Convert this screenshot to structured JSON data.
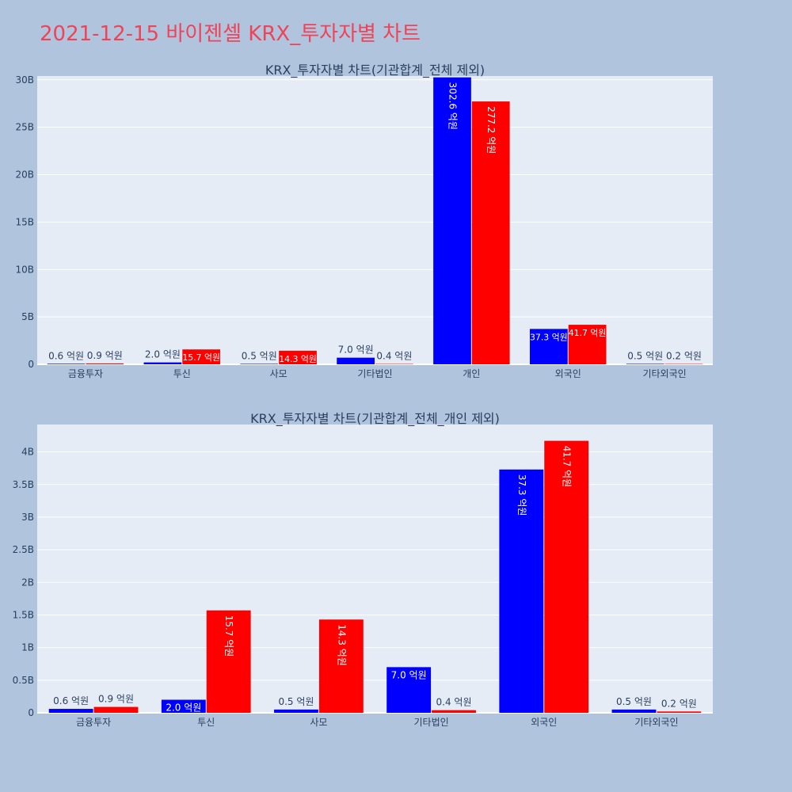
{
  "page_title": "2021-12-15 바이젠셀 KRX_투자자별 차트",
  "colors": {
    "background": "#b0c4de",
    "plot_bg": "#e5ecf6",
    "title": "#ef4458",
    "series_a": "#0000ff",
    "series_b": "#ff0000"
  },
  "chart_data": [
    {
      "type": "bar",
      "title": "KRX_투자자별 차트(기관합계_전체 제외)",
      "categories": [
        "금융투자",
        "투신",
        "사모",
        "기타법인",
        "개인",
        "외국인",
        "기타외국인"
      ],
      "yticks": [
        {
          "value": 0,
          "label": "0"
        },
        {
          "value": 5,
          "label": "5B"
        },
        {
          "value": 10,
          "label": "10B"
        },
        {
          "value": 15,
          "label": "15B"
        },
        {
          "value": 20,
          "label": "20B"
        },
        {
          "value": 25,
          "label": "25B"
        },
        {
          "value": 30,
          "label": "30B"
        }
      ],
      "ylim": [
        0,
        30.4
      ],
      "grid": true,
      "legend": "none",
      "series": [
        {
          "color": "#0000ff",
          "values": [
            0.06,
            0.2,
            0.05,
            0.7,
            30.26,
            3.73,
            0.05
          ],
          "labels": [
            "0.6 억원",
            "2.0 억원",
            "0.5 억원",
            "7.0 억원",
            "302.6 억원",
            "37.3 억원",
            "0.5 억원"
          ]
        },
        {
          "color": "#ff0000",
          "values": [
            0.09,
            1.57,
            1.43,
            0.04,
            27.72,
            4.17,
            0.02
          ],
          "labels": [
            "0.9 억원",
            "15.7 억원",
            "14.3 억원",
            "0.4 억원",
            "277.2 억원",
            "41.7 억원",
            "0.2 억원"
          ]
        }
      ]
    },
    {
      "type": "bar",
      "title": "KRX_투자자별 차트(기관합계_전체_개인 제외)",
      "categories": [
        "금융투자",
        "투신",
        "사모",
        "기타법인",
        "외국인",
        "기타외국인"
      ],
      "yticks": [
        {
          "value": 0,
          "label": "0"
        },
        {
          "value": 0.5,
          "label": "0.5B"
        },
        {
          "value": 1,
          "label": "1B"
        },
        {
          "value": 1.5,
          "label": "1.5B"
        },
        {
          "value": 2,
          "label": "2B"
        },
        {
          "value": 2.5,
          "label": "2.5B"
        },
        {
          "value": 3,
          "label": "3B"
        },
        {
          "value": 3.5,
          "label": "3.5B"
        },
        {
          "value": 4,
          "label": "4B"
        }
      ],
      "ylim": [
        0,
        4.42
      ],
      "grid": true,
      "legend": "none",
      "series": [
        {
          "color": "#0000ff",
          "values": [
            0.06,
            0.2,
            0.05,
            0.7,
            3.73,
            0.05
          ],
          "labels": [
            "0.6 억원",
            "2.0 억원",
            "0.5 억원",
            "7.0 억원",
            "37.3 억원",
            "0.5 억원"
          ]
        },
        {
          "color": "#ff0000",
          "values": [
            0.09,
            1.57,
            1.43,
            0.04,
            4.17,
            0.02
          ],
          "labels": [
            "0.9 억원",
            "15.7 억원",
            "14.3 억원",
            "0.4 억원",
            "41.7 억원",
            "0.2 억원"
          ]
        }
      ]
    }
  ]
}
